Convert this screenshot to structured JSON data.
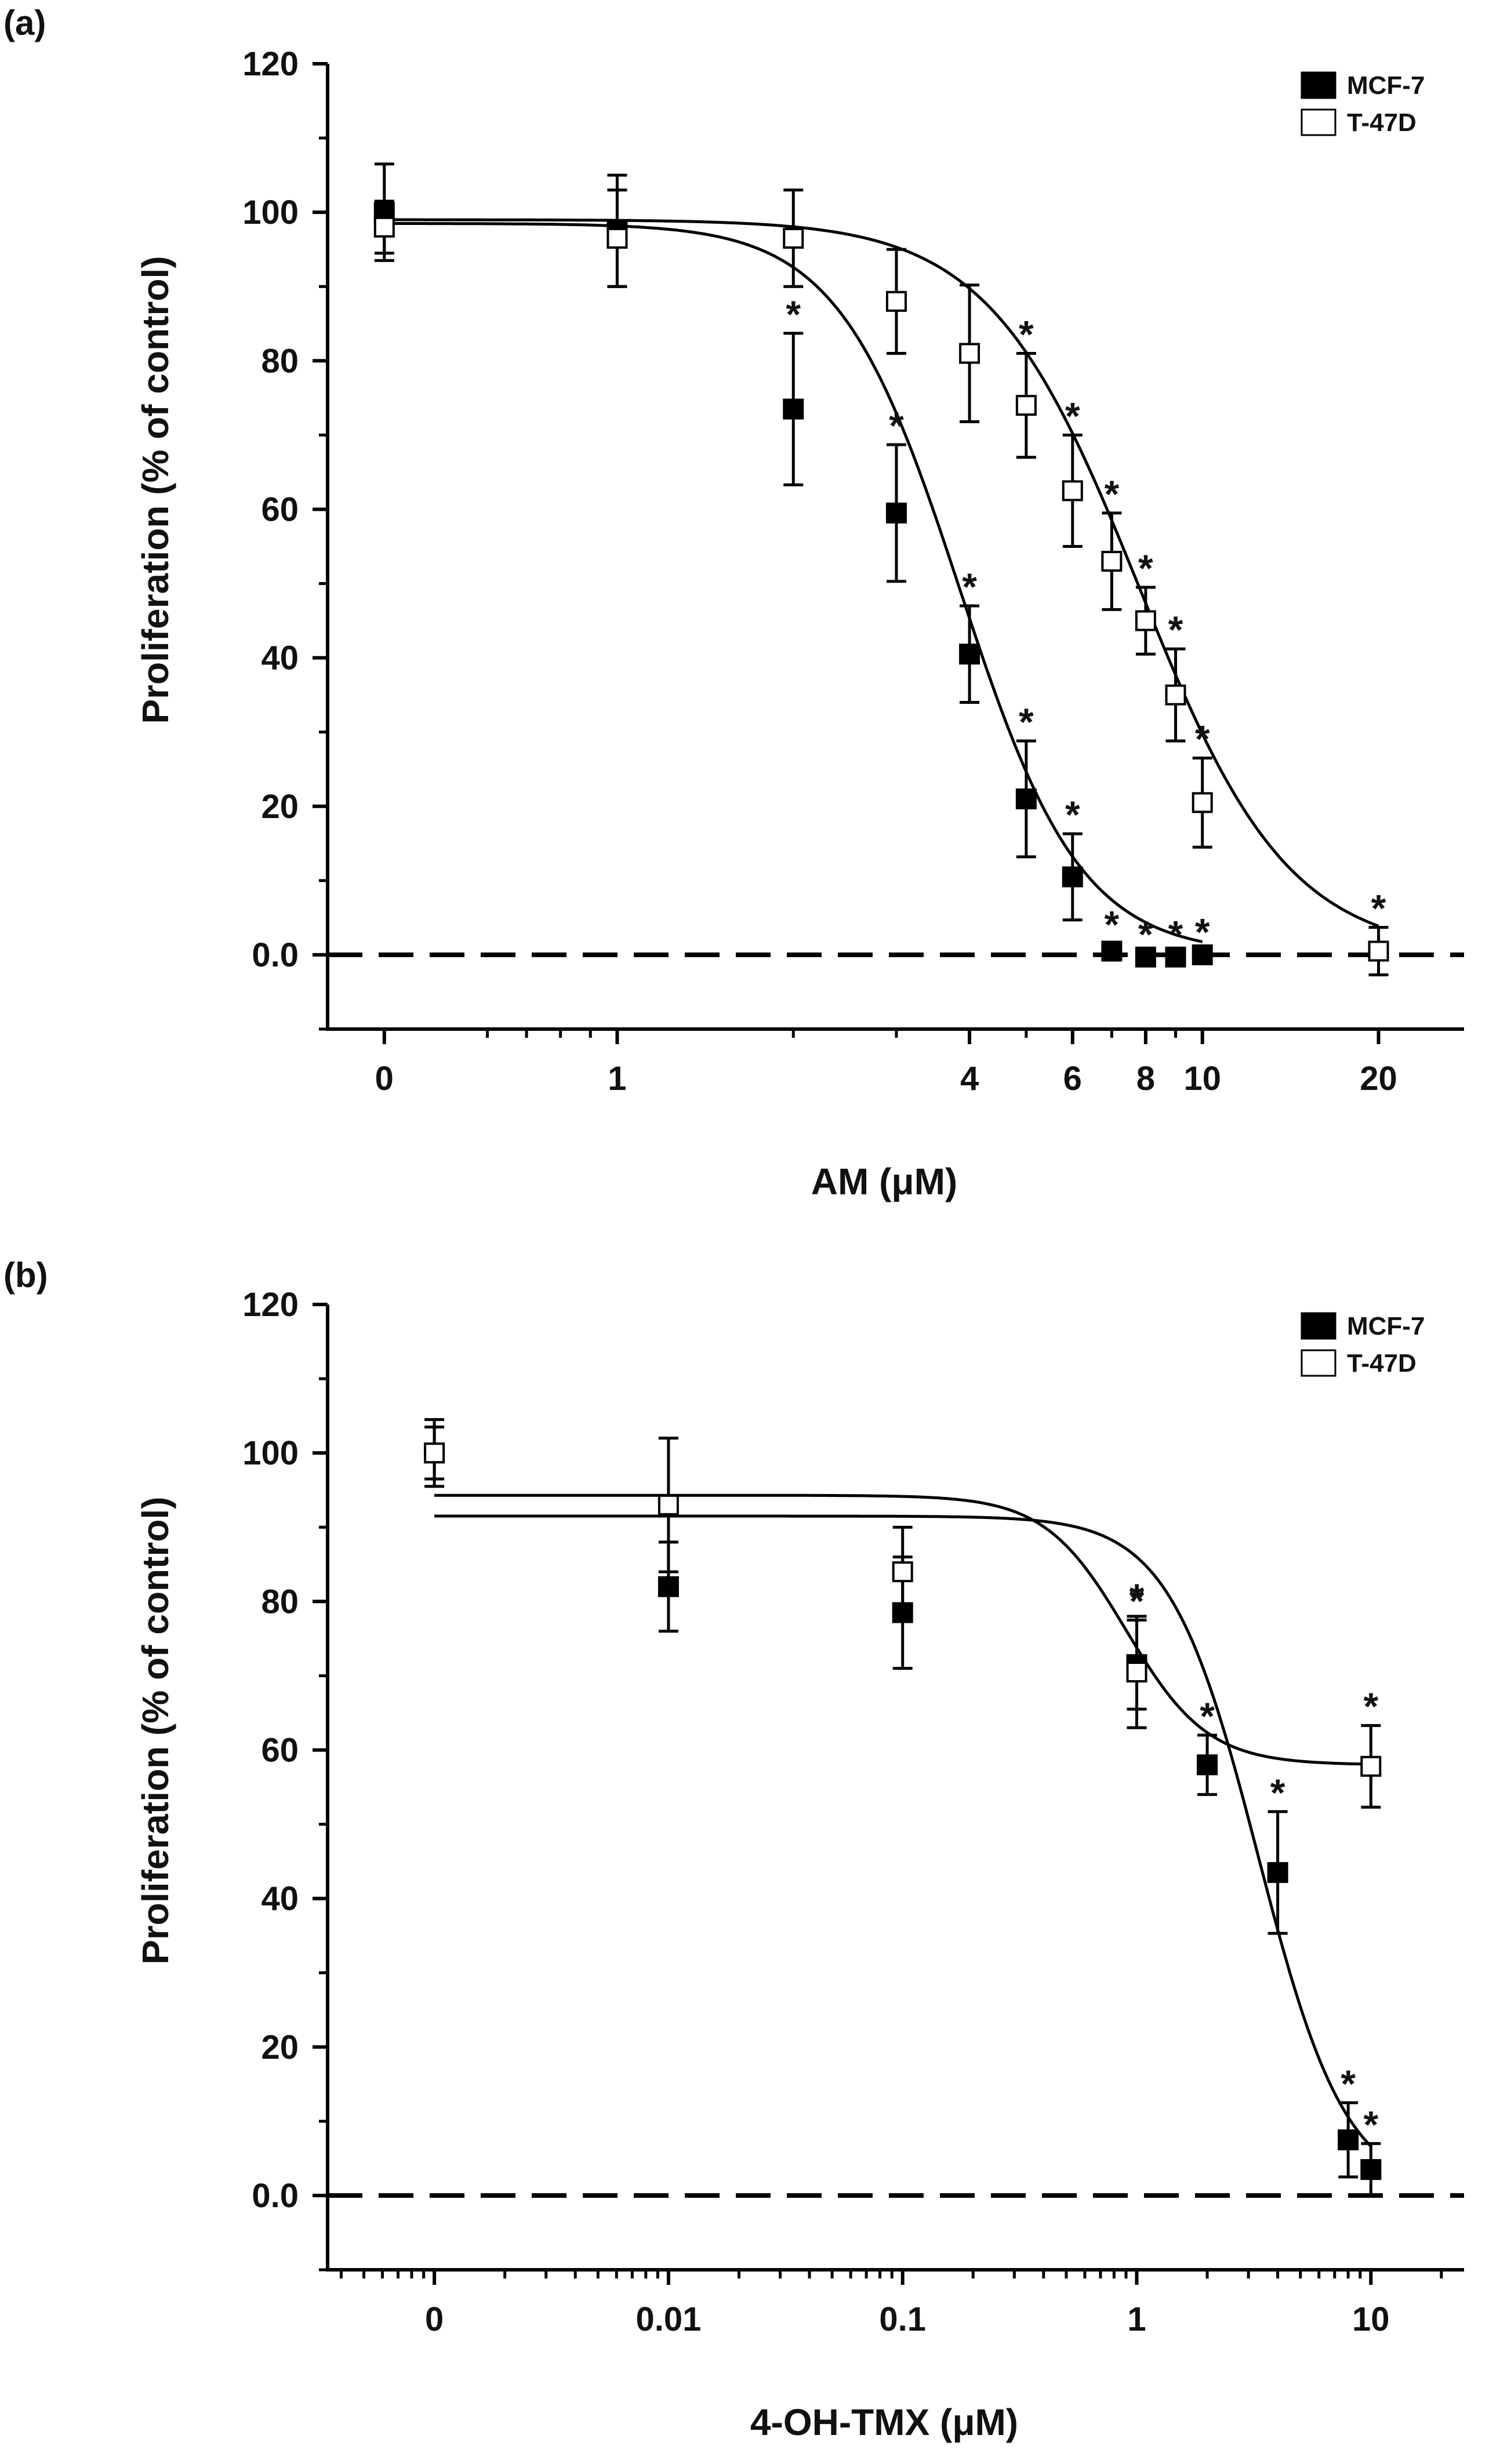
{
  "chart_data": [
    {
      "type": "scatter",
      "panel_label": "(a)",
      "xlabel": "AM (μM)",
      "ylabel": "Proliferation (% of control)",
      "x_scale": "log",
      "xlim": [
        0.32,
        28
      ],
      "ylim": [
        -10,
        120
      ],
      "x_ticks": [
        {
          "v": 0.4,
          "label": "0"
        },
        {
          "v": 1,
          "label": "1"
        },
        {
          "v": 4,
          "label": "4"
        },
        {
          "v": 6,
          "label": "6"
        },
        {
          "v": 8,
          "label": "8"
        },
        {
          "v": 10,
          "label": "10"
        },
        {
          "v": 20,
          "label": "20"
        }
      ],
      "minor_ticks": [
        0.6,
        0.7,
        0.8,
        0.9,
        2,
        3,
        5,
        7,
        9
      ],
      "y_ticks": [
        {
          "v": 0,
          "label": "0.0"
        },
        {
          "v": 20,
          "label": "20"
        },
        {
          "v": 40,
          "label": "40"
        },
        {
          "v": 60,
          "label": "60"
        },
        {
          "v": 80,
          "label": "80"
        },
        {
          "v": 100,
          "label": "100"
        },
        {
          "v": 120,
          "label": "120"
        }
      ],
      "dashed_baseline": 0,
      "legend": [
        {
          "name": "MCF-7",
          "fill": "#000000"
        },
        {
          "name": "T-47D",
          "fill": "#ffffff"
        }
      ],
      "legend_position": "top-right",
      "series": [
        {
          "name": "MCF-7",
          "fill": "#000000",
          "x": [
            0.4,
            1,
            2,
            3,
            4,
            5,
            6,
            7,
            8,
            9,
            10
          ],
          "y": [
            100,
            97.5,
            73.5,
            59.5,
            40.5,
            21,
            10.5,
            0.5,
            -0.3,
            -0.3,
            0
          ],
          "err": [
            6.5,
            7.5,
            10.2,
            9.2,
            6.5,
            7.8,
            5.8,
            1,
            0.5,
            0.5,
            0.5
          ],
          "sig": [
            false,
            false,
            true,
            true,
            true,
            true,
            true,
            true,
            true,
            true,
            true
          ],
          "fit": {
            "top": 98.5,
            "bottom": 0,
            "ic50": 3.85,
            "hill": 4.2
          }
        },
        {
          "name": "T-47D",
          "fill": "#ffffff",
          "x": [
            0.4,
            1,
            2,
            3,
            4,
            5,
            6,
            7,
            8,
            9,
            10,
            20
          ],
          "y": [
            98,
            96.5,
            96.5,
            88,
            81,
            74,
            62.5,
            53,
            45,
            35,
            20.5,
            0.5
          ],
          "err": [
            3.5,
            6.5,
            6.5,
            7,
            9.2,
            7,
            7.5,
            6.5,
            4.5,
            6.2,
            6,
            3.2
          ],
          "sig": [
            false,
            false,
            false,
            false,
            false,
            true,
            true,
            true,
            true,
            true,
            true,
            true
          ],
          "fit": {
            "top": 99,
            "bottom": 0,
            "ic50": 7.8,
            "hill": 3.4
          }
        }
      ]
    },
    {
      "type": "scatter",
      "panel_label": "(b)",
      "xlabel": "4-OH-TMX (μM)",
      "ylabel": "Proliferation (% of control)",
      "x_scale": "log",
      "xlim": [
        0.00035,
        25
      ],
      "ylim": [
        -10,
        120
      ],
      "x_ticks": [
        {
          "v": 0.001,
          "label": "0"
        },
        {
          "v": 0.01,
          "label": "0.01"
        },
        {
          "v": 0.1,
          "label": "0.1"
        },
        {
          "v": 1,
          "label": "1"
        },
        {
          "v": 10,
          "label": "10"
        }
      ],
      "minor_ticks": [
        0.0004,
        0.0005,
        0.0006,
        0.0007,
        0.0008,
        0.0009,
        0.002,
        0.003,
        0.004,
        0.005,
        0.006,
        0.007,
        0.008,
        0.009,
        0.02,
        0.03,
        0.04,
        0.05,
        0.06,
        0.07,
        0.08,
        0.09,
        0.2,
        0.3,
        0.4,
        0.5,
        0.6,
        0.7,
        0.8,
        0.9,
        2,
        3,
        4,
        5,
        6,
        7,
        8,
        9,
        20
      ],
      "y_ticks": [
        {
          "v": 0,
          "label": "0.0"
        },
        {
          "v": 20,
          "label": "20"
        },
        {
          "v": 40,
          "label": "40"
        },
        {
          "v": 60,
          "label": "60"
        },
        {
          "v": 80,
          "label": "80"
        },
        {
          "v": 100,
          "label": "100"
        },
        {
          "v": 120,
          "label": "120"
        }
      ],
      "dashed_baseline": 0,
      "legend": [
        {
          "name": "MCF-7",
          "fill": "#000000"
        },
        {
          "name": "T-47D",
          "fill": "#ffffff"
        }
      ],
      "legend_position": "top-right",
      "series": [
        {
          "name": "MCF-7",
          "fill": "#000000",
          "x": [
            0.001,
            0.01,
            0.1,
            1,
            2,
            4,
            8,
            10
          ],
          "y": [
            100,
            82,
            78.5,
            71.5,
            58,
            43.5,
            7.5,
            3.5
          ],
          "err": [
            3.5,
            6,
            7.5,
            6,
            4,
            8.2,
            5,
            3.5
          ],
          "sig": [
            false,
            false,
            false,
            true,
            true,
            true,
            true,
            true
          ],
          "fit": {
            "top": 91.5,
            "bottom": 0,
            "ic50": 3.3,
            "hill": 2.3
          }
        },
        {
          "name": "T-47D",
          "fill": "#ffffff",
          "x": [
            0.001,
            0.01,
            0.1,
            1,
            10
          ],
          "y": [
            100,
            93,
            84,
            70.5,
            57.8
          ],
          "err": [
            4.5,
            9,
            6,
            7.5,
            5.5
          ],
          "sig": [
            false,
            false,
            false,
            true,
            true
          ],
          "fit": {
            "top": 94.3,
            "bottom": 58,
            "ic50": 0.9,
            "hill": 2.5
          }
        }
      ]
    }
  ]
}
